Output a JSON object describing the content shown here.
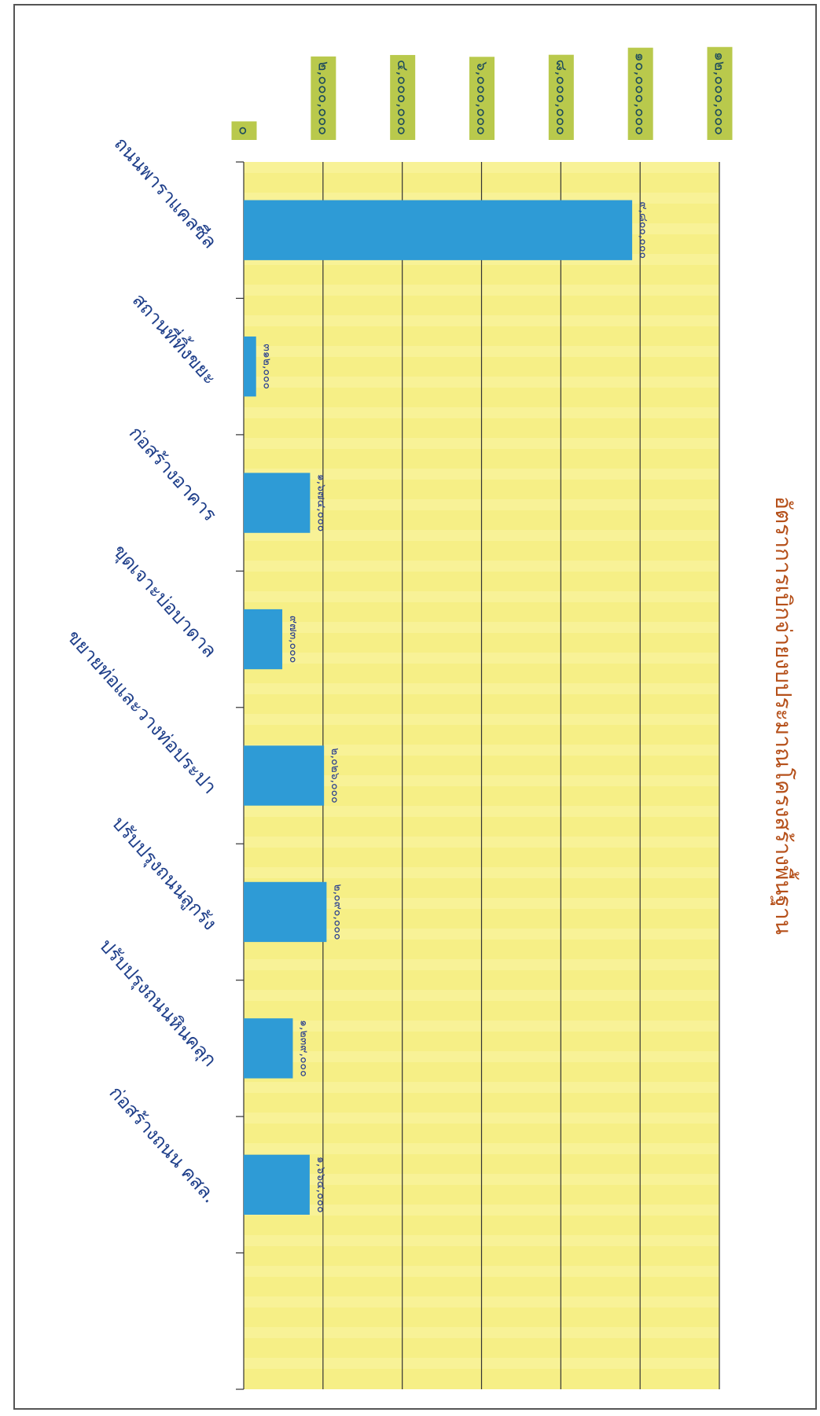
{
  "chart_data": {
    "type": "bar",
    "title": "อัตราการเบิกจ่ายงบประมาณโครงสร้างพื้นฐาน",
    "categories": [
      "ถนนพาราแคลซีล",
      "สถานที่ทิ้งขยะ",
      "ก่อสร้างอาคาร",
      "ขุดเจาะบ่อบาดาล",
      "ขยายท่อและวางท่อประปา",
      "ปรับปรุงถนนลูกรัง",
      "ปรับปรุงถนนหินคลุก",
      "ก่อสร้างถนน คสล.",
      null
    ],
    "values": [
      9800000,
      312000,
      1674000,
      973000,
      2026000,
      2090000,
      1239000,
      1664000,
      null
    ],
    "value_labels": [
      "๙,๘๐๐,๐๐๐",
      "๓๑๒,๐๐๐",
      "๑,๖๗๔,๐๐๐",
      "๙๗๓,๐๐๐",
      "๒,๐๒๖,๐๐๐",
      "๒,๐๙๐,๐๐๐",
      "๑,๒๓๙,๐๐๐",
      "๑,๖๖๔,๐๐๐",
      null
    ],
    "color": "#2e9bd6",
    "ylim": [
      0,
      12000000
    ],
    "yticks": [
      {
        "value": 0,
        "label": "๐"
      },
      {
        "value": 2000000,
        "label": "๒,๐๐๐,๐๐๐"
      },
      {
        "value": 4000000,
        "label": "๔,๐๐๐,๐๐๐"
      },
      {
        "value": 6000000,
        "label": "๖,๐๐๐,๐๐๐"
      },
      {
        "value": 8000000,
        "label": "๘,๐๐๐,๐๐๐"
      },
      {
        "value": 10000000,
        "label": "๑๐,๐๐๐,๐๐๐"
      },
      {
        "value": 12000000,
        "label": "๑๒,๐๐๐,๐๐๐"
      }
    ],
    "grid": true
  }
}
